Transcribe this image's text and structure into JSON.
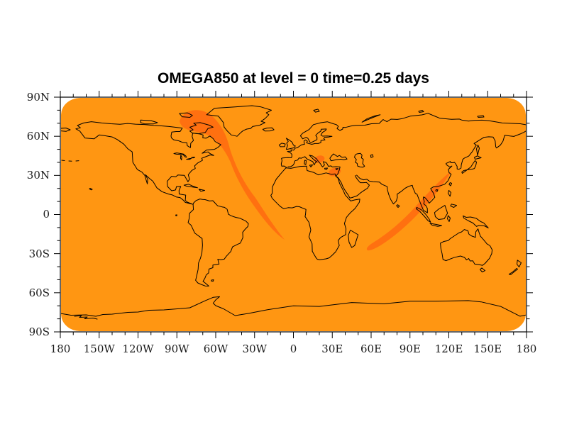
{
  "title": "OMEGA850 at level = 0 time=0.25 days",
  "colors": {
    "page-bg": "#ffffff",
    "map-base": "#ff9612",
    "map-anomaly": "#ff7010",
    "coast": "#000000",
    "frame": "#000000",
    "label": "#1a1a1a"
  },
  "axes": {
    "lat_labels": [
      "90N",
      "60N",
      "30N",
      "0",
      "30S",
      "60S",
      "90S"
    ],
    "lon_labels": [
      "180",
      "150W",
      "120W",
      "90W",
      "60W",
      "30W",
      "0",
      "30E",
      "60E",
      "90E",
      "120E",
      "150E",
      "180"
    ],
    "lon_minor_intervals": 36,
    "lat_minor_intervals": 18,
    "minor_per_major": 3
  },
  "chart_data": {
    "type": "heatmap",
    "subtype": "filled-contour world map, cylindrical equidistant projection",
    "title": "OMEGA850 at level = 0 time=0.25 days",
    "field": "OMEGA850",
    "level": "0",
    "time": "0.25 days",
    "xlabel": "",
    "ylabel": "",
    "lon_range_deg": [
      -180,
      180
    ],
    "lat_range_deg": [
      -90,
      90
    ],
    "x_tick_labels": [
      "180",
      "150W",
      "120W",
      "90W",
      "60W",
      "30W",
      "0",
      "30E",
      "60E",
      "90E",
      "120E",
      "150E",
      "180"
    ],
    "y_tick_labels": [
      "90N",
      "60N",
      "30N",
      "0",
      "30S",
      "60S",
      "90S"
    ],
    "major_tick_interval_deg": 30,
    "minor_tick_interval_deg": 10,
    "grid": "off",
    "legend": "none",
    "fill_levels": [
      {
        "color": "#ff9612",
        "meaning": "background omega band covering nearly entire globe"
      },
      {
        "color": "#ff7010",
        "meaning": "stronger omega band (darker orange anomalies)"
      }
    ],
    "anomaly_features": [
      {
        "name": "north-atlantic-streak",
        "description": "blob over Hudson Bay/Quebec (~70W,55-65N) tapering southeast across the Atlantic to ~10W,10S"
      },
      {
        "name": "indian-ocean-streak",
        "description": "narrow band from south China coast (~115E,22N) running southwest across Indian Ocean to ~65E,30S"
      },
      {
        "name": "balkans-blob",
        "description": "small spot near 17E,43N"
      },
      {
        "name": "east-mediterranean-blob",
        "description": "small spot near 32E,33N"
      }
    ],
    "other": "black coastline outlines drawn over uniform orange fill; map fill has rounded corners inside black axis frame"
  }
}
